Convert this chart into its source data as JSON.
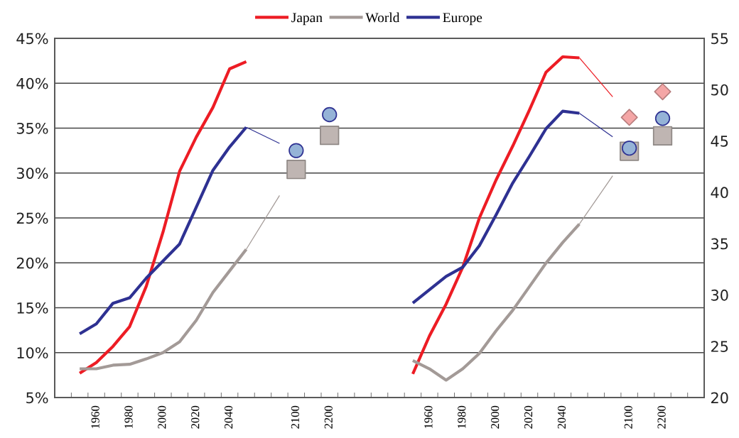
{
  "chart_data": {
    "type": "line",
    "categories": [
      null,
      null,
      "1960",
      null,
      "1980",
      null,
      "2000",
      null,
      "2020",
      null,
      "2040",
      null,
      null,
      null,
      "2100",
      null,
      "2200",
      null,
      null,
      null,
      null,
      null,
      "1960",
      null,
      "1980",
      null,
      "2000",
      null,
      "2020",
      null,
      "2040",
      null,
      null,
      null,
      "2100",
      null,
      "2200",
      null,
      null
    ],
    "series": [
      {
        "name": "Japan",
        "color": "#ed1c24",
        "axis": "y",
        "values": [
          null,
          7.7,
          8.9,
          10.7,
          12.9,
          17.4,
          23.4,
          30.2,
          34.0,
          37.3,
          41.6,
          42.4,
          null,
          null,
          null,
          null,
          null,
          null,
          null,
          null,
          null,
          null,
          null,
          null,
          null,
          null,
          null,
          null,
          null,
          null,
          null,
          null,
          null,
          null,
          null,
          null,
          null,
          null,
          null
        ]
      },
      {
        "name": "World",
        "color": "#a39a97",
        "axis": "y",
        "values": [
          null,
          8.2,
          8.2,
          8.6,
          8.7,
          9.3,
          10.0,
          11.2,
          13.6,
          16.7,
          19.1,
          21.5,
          null,
          null,
          null,
          null,
          null,
          null,
          null,
          null,
          null,
          null,
          null,
          null,
          null,
          null,
          null,
          null,
          null,
          null,
          null,
          null,
          null,
          null,
          null,
          null,
          null,
          null,
          null
        ]
      },
      {
        "name": "Europe",
        "color": "#2e3192",
        "axis": "y",
        "values": [
          null,
          12.1,
          13.2,
          15.5,
          16.1,
          18.3,
          20.2,
          22.1,
          26.2,
          30.3,
          32.9,
          35.1,
          null,
          null,
          null,
          null,
          null,
          null,
          null,
          null,
          null,
          null,
          null,
          null,
          null,
          null,
          null,
          null,
          null,
          null,
          null,
          null,
          null,
          null,
          null,
          null,
          null,
          null,
          null
        ]
      },
      {
        "color": "#a39a97",
        "axis": "y",
        "values": [
          null,
          null,
          null,
          null,
          null,
          null,
          null,
          null,
          null,
          null,
          null,
          21.5,
          null,
          27.5,
          null,
          null,
          null,
          null,
          null,
          null,
          null,
          null,
          null,
          null,
          null,
          null,
          null,
          null,
          null,
          null,
          null,
          null,
          null,
          null,
          null,
          null,
          null,
          null,
          null
        ]
      },
      {
        "color": "#2e3192",
        "axis": "y",
        "values": [
          null,
          null,
          null,
          null,
          null,
          null,
          null,
          null,
          null,
          null,
          null,
          35.1,
          null,
          33.3,
          null,
          null,
          null,
          null,
          null,
          null,
          null,
          null,
          null,
          null,
          null,
          null,
          null,
          null,
          null,
          null,
          null,
          null,
          null,
          null,
          null,
          null,
          null,
          null,
          null
        ]
      },
      {
        "type": "scatter",
        "marker": "square",
        "color": "#bfb5b2",
        "axis": "y",
        "values": [
          null,
          null,
          null,
          null,
          null,
          null,
          null,
          null,
          null,
          null,
          null,
          null,
          null,
          null,
          30.4,
          null,
          34.2,
          null,
          null,
          null,
          null,
          null,
          null,
          null,
          null,
          null,
          null,
          null,
          null,
          null,
          null,
          null,
          null,
          null,
          null,
          null,
          null,
          null,
          null
        ]
      },
      {
        "type": "scatter",
        "marker": "circle",
        "color": "#95b3d7",
        "axis": "y",
        "values": [
          null,
          null,
          null,
          null,
          null,
          null,
          null,
          null,
          null,
          null,
          null,
          null,
          null,
          null,
          32.5,
          null,
          36.5,
          null,
          null,
          null,
          null,
          null,
          null,
          null,
          null,
          null,
          null,
          null,
          null,
          null,
          null,
          null,
          null,
          null,
          null,
          null,
          null,
          null,
          null
        ]
      },
      {
        "color": "#ed1c24",
        "axis": "y2",
        "values": [
          null,
          null,
          null,
          null,
          null,
          null,
          null,
          null,
          null,
          null,
          null,
          null,
          null,
          null,
          null,
          null,
          null,
          null,
          null,
          null,
          null,
          22.3,
          26.0,
          29.1,
          32.7,
          37.5,
          41.2,
          44.5,
          48.0,
          51.7,
          53.2,
          53.1,
          null,
          null,
          null,
          null,
          null,
          null,
          null
        ]
      },
      {
        "color": "#a39a97",
        "axis": "y2",
        "values": [
          null,
          null,
          null,
          null,
          null,
          null,
          null,
          null,
          null,
          null,
          null,
          null,
          null,
          null,
          null,
          null,
          null,
          null,
          null,
          null,
          null,
          23.6,
          22.8,
          21.7,
          22.8,
          24.3,
          26.5,
          28.5,
          30.8,
          33.1,
          35.1,
          36.9,
          null,
          null,
          null,
          null,
          null,
          null,
          null
        ]
      },
      {
        "color": "#2e3192",
        "axis": "y2",
        "values": [
          null,
          null,
          null,
          null,
          null,
          null,
          null,
          null,
          null,
          null,
          null,
          null,
          null,
          null,
          null,
          null,
          null,
          null,
          null,
          null,
          null,
          29.2,
          30.5,
          31.8,
          32.7,
          34.8,
          37.8,
          40.9,
          43.5,
          46.2,
          47.9,
          47.7,
          null,
          null,
          null,
          null,
          null,
          null,
          null
        ]
      },
      {
        "color": "#ed1c24",
        "axis": "y2",
        "values": [
          null,
          null,
          null,
          null,
          null,
          null,
          null,
          null,
          null,
          null,
          null,
          null,
          null,
          null,
          null,
          null,
          null,
          null,
          null,
          null,
          null,
          null,
          null,
          null,
          null,
          null,
          null,
          null,
          null,
          null,
          null,
          53.1,
          null,
          49.3,
          null,
          null,
          null,
          null,
          null
        ]
      },
      {
        "color": "#a39a97",
        "axis": "y2",
        "values": [
          null,
          null,
          null,
          null,
          null,
          null,
          null,
          null,
          null,
          null,
          null,
          null,
          null,
          null,
          null,
          null,
          null,
          null,
          null,
          null,
          null,
          null,
          null,
          null,
          null,
          null,
          null,
          null,
          null,
          null,
          null,
          36.9,
          null,
          41.6,
          null,
          null,
          null,
          null,
          null
        ]
      },
      {
        "color": "#2e3192",
        "axis": "y2",
        "values": [
          null,
          null,
          null,
          null,
          null,
          null,
          null,
          null,
          null,
          null,
          null,
          null,
          null,
          null,
          null,
          null,
          null,
          null,
          null,
          null,
          null,
          null,
          null,
          null,
          null,
          null,
          null,
          null,
          null,
          null,
          null,
          47.7,
          null,
          45.4,
          null,
          null,
          null,
          null,
          null
        ]
      },
      {
        "type": "scatter",
        "marker": "square",
        "color": "#bfb5b2",
        "axis": "y2",
        "values": [
          null,
          null,
          null,
          null,
          null,
          null,
          null,
          null,
          null,
          null,
          null,
          null,
          null,
          null,
          null,
          null,
          null,
          null,
          null,
          null,
          null,
          null,
          null,
          null,
          null,
          null,
          null,
          null,
          null,
          null,
          null,
          null,
          null,
          null,
          44.0,
          null,
          45.5,
          null,
          null
        ]
      },
      {
        "type": "scatter",
        "marker": "circle",
        "color": "#95b3d7",
        "axis": "y2",
        "values": [
          null,
          null,
          null,
          null,
          null,
          null,
          null,
          null,
          null,
          null,
          null,
          null,
          null,
          null,
          null,
          null,
          null,
          null,
          null,
          null,
          null,
          null,
          null,
          null,
          null,
          null,
          null,
          null,
          null,
          null,
          null,
          null,
          null,
          null,
          44.3,
          null,
          47.2,
          null,
          null
        ]
      },
      {
        "type": "scatter",
        "marker": "diamond",
        "color": "#f4a6a6",
        "axis": "y2",
        "values": [
          null,
          null,
          null,
          null,
          null,
          null,
          null,
          null,
          null,
          null,
          null,
          null,
          null,
          null,
          null,
          null,
          null,
          null,
          null,
          null,
          null,
          null,
          null,
          null,
          null,
          null,
          null,
          null,
          null,
          null,
          null,
          null,
          null,
          null,
          47.3,
          null,
          49.8,
          null,
          null
        ]
      }
    ],
    "ylim": [
      5,
      45
    ],
    "yticks": [
      {
        "value": 5,
        "label": "5%"
      },
      {
        "value": 10,
        "label": "10%"
      },
      {
        "value": 15,
        "label": "15%"
      },
      {
        "value": 20,
        "label": "20%"
      },
      {
        "value": 25,
        "label": "25%"
      },
      {
        "value": 30,
        "label": "30%"
      },
      {
        "value": 35,
        "label": "35%"
      },
      {
        "value": 40,
        "label": "40%"
      },
      {
        "value": 45,
        "label": "45%"
      }
    ],
    "y2lim": [
      20,
      55
    ],
    "y2ticks": [
      20,
      25,
      30,
      35,
      40,
      45,
      50,
      55
    ],
    "grid": "y",
    "legend": "top"
  }
}
